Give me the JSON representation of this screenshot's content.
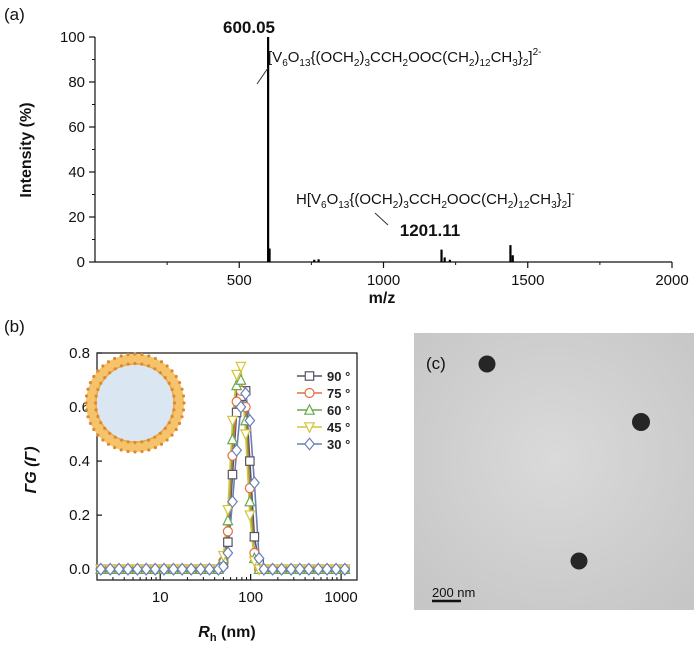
{
  "panels": {
    "a": "(a)",
    "b": "(b)",
    "c": "(c)"
  },
  "chart_data": [
    {
      "type": "bar",
      "xlabel": "m/z",
      "ylabel": "Intensity (%)",
      "xlim": [
        0,
        2000
      ],
      "ylim": [
        0,
        100
      ],
      "xticks": [
        "500",
        "1000",
        "1500",
        "2000"
      ],
      "yticks": [
        "0",
        "20",
        "40",
        "60",
        "80",
        "100"
      ],
      "peaks": [
        {
          "x": 600.05,
          "y": 100
        },
        {
          "x": 605,
          "y": 6
        },
        {
          "x": 760,
          "y": 1
        },
        {
          "x": 775,
          "y": 1.2
        },
        {
          "x": 1201.11,
          "y": 5.5
        },
        {
          "x": 1212,
          "y": 2
        },
        {
          "x": 1230,
          "y": 1
        },
        {
          "x": 1440,
          "y": 7.5
        },
        {
          "x": 1448,
          "y": 3
        }
      ],
      "annotations": {
        "peak1_label": "600.05",
        "peak2_label": "1201.11",
        "formula1": {
          "pre": "[V",
          "s1": "6",
          "t1": "O",
          "s2": "13",
          "t2": "{(OCH",
          "s3": "2",
          "t3": ")",
          "s4": "3",
          "t4": "CCH",
          "s5": "2",
          "t5": "OOC(CH",
          "s6": "2",
          "t6": ")",
          "s7": "12",
          "t7": "CH",
          "s8": "3",
          "t8": "}",
          "s9": "2",
          "t9": "]",
          "sup": "2-"
        },
        "formula2": {
          "pre": "H[V",
          "s1": "6",
          "t1": "O",
          "s2": "13",
          "t2": "{(OCH",
          "s3": "2",
          "t3": ")",
          "s4": "3",
          "t4": "CCH",
          "s5": "2",
          "t5": "OOC(CH",
          "s6": "2",
          "t6": ")",
          "s7": "12",
          "t7": "CH",
          "s8": "3",
          "t8": "}",
          "s9": "2",
          "t9": "]",
          "sup": "-"
        }
      }
    },
    {
      "type": "line",
      "xlabel": "R",
      "xlabel_sub": "h",
      "xlabel_unit": " (nm)",
      "ylabel": "ΓG (Γ)",
      "xscale": "log",
      "xlim": [
        2,
        1500
      ],
      "ylim": [
        -0.04,
        0.8
      ],
      "xticks": [
        "10",
        "100",
        "1000"
      ],
      "yticks": [
        "0.0",
        "0.2",
        "0.4",
        "0.6",
        "0.8"
      ],
      "x": [
        2.2,
        2.8,
        3.5,
        4.4,
        5.6,
        7.0,
        8.8,
        11,
        14,
        17.5,
        22,
        28,
        35,
        44,
        50,
        56,
        63,
        70,
        78,
        88,
        98,
        110,
        124,
        140,
        175,
        220,
        280,
        350,
        440,
        560,
        700,
        880,
        1100
      ],
      "series": [
        {
          "name": "90 °",
          "color": "#555566",
          "marker": "square",
          "values": [
            0,
            0,
            0,
            0,
            0,
            0,
            0,
            0,
            0,
            0,
            0,
            0,
            0,
            0,
            0.02,
            0.1,
            0.35,
            0.58,
            0.64,
            0.66,
            0.4,
            0.12,
            0.02,
            0,
            0,
            0,
            0,
            0,
            0,
            0,
            0,
            0,
            0
          ]
        },
        {
          "name": "75 °",
          "color": "#e07040",
          "marker": "circle",
          "values": [
            0,
            0,
            0,
            0,
            0,
            0,
            0,
            0,
            0,
            0,
            0,
            0,
            0,
            0,
            0.03,
            0.14,
            0.42,
            0.62,
            0.66,
            0.6,
            0.3,
            0.06,
            0,
            0,
            0,
            0,
            0,
            0,
            0,
            0,
            0,
            0,
            0
          ]
        },
        {
          "name": "60 °",
          "color": "#6aa84f",
          "marker": "triangle",
          "values": [
            0,
            0,
            0,
            0,
            0,
            0,
            0,
            0,
            0,
            0,
            0,
            0,
            0,
            0,
            0.04,
            0.18,
            0.48,
            0.68,
            0.7,
            0.55,
            0.25,
            0.04,
            0,
            0,
            0,
            0,
            0,
            0,
            0,
            0,
            0,
            0,
            0
          ]
        },
        {
          "name": "45 °",
          "color": "#d4c43a",
          "marker": "triangle-down",
          "values": [
            0,
            0,
            0,
            0,
            0,
            0,
            0,
            0,
            0,
            0,
            0,
            0,
            0,
            0,
            0.05,
            0.22,
            0.55,
            0.72,
            0.75,
            0.5,
            0.2,
            0.03,
            0,
            0,
            0,
            0,
            0,
            0,
            0,
            0,
            0,
            0,
            0
          ]
        },
        {
          "name": "30 °",
          "color": "#6a7fb8",
          "marker": "diamond",
          "values": [
            0,
            0,
            0,
            0,
            0,
            0,
            0,
            0,
            0,
            0,
            0,
            0,
            0,
            0,
            0.01,
            0.06,
            0.25,
            0.44,
            0.6,
            0.65,
            0.55,
            0.32,
            0.04,
            0,
            0,
            0,
            0,
            0,
            0,
            0,
            0,
            0,
            0
          ]
        }
      ],
      "legend": "top-right",
      "inset": {
        "shell_color": "#f5c46a",
        "core_color": "#dbe6f3",
        "dot_color": "#e08830"
      }
    }
  ],
  "tem": {
    "scale_label": "200 nm",
    "particle_count": 3
  }
}
